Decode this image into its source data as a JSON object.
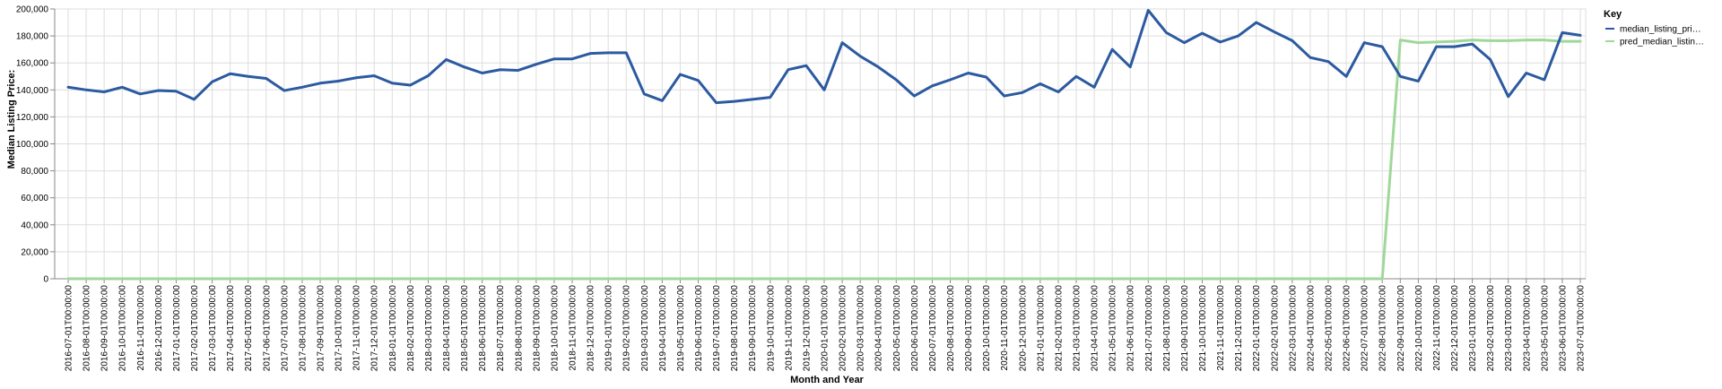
{
  "chart_data": {
    "type": "line",
    "xlabel": "Month and Year",
    "ylabel": "Median Listing Price:",
    "ylim": [
      0,
      200000
    ],
    "yticks": [
      "0",
      "20,000",
      "40,000",
      "60,000",
      "80,000",
      "100,000",
      "120,000",
      "140,000",
      "160,000",
      "180,000",
      "200,000"
    ],
    "grid": true,
    "legend": {
      "title": "Key",
      "placement": "top-right"
    },
    "x": [
      "2016-07-01T00:00:00",
      "2016-08-01T00:00:00",
      "2016-09-01T00:00:00",
      "2016-10-01T00:00:00",
      "2016-11-01T00:00:00",
      "2016-12-01T00:00:00",
      "2017-01-01T00:00:00",
      "2017-02-01T00:00:00",
      "2017-03-01T00:00:00",
      "2017-04-01T00:00:00",
      "2017-05-01T00:00:00",
      "2017-06-01T00:00:00",
      "2017-07-01T00:00:00",
      "2017-08-01T00:00:00",
      "2017-09-01T00:00:00",
      "2017-10-01T00:00:00",
      "2017-11-01T00:00:00",
      "2017-12-01T00:00:00",
      "2018-01-01T00:00:00",
      "2018-02-01T00:00:00",
      "2018-03-01T00:00:00",
      "2018-04-01T00:00:00",
      "2018-05-01T00:00:00",
      "2018-06-01T00:00:00",
      "2018-07-01T00:00:00",
      "2018-08-01T00:00:00",
      "2018-09-01T00:00:00",
      "2018-10-01T00:00:00",
      "2018-11-01T00:00:00",
      "2018-12-01T00:00:00",
      "2019-01-01T00:00:00",
      "2019-02-01T00:00:00",
      "2019-03-01T00:00:00",
      "2019-04-01T00:00:00",
      "2019-05-01T00:00:00",
      "2019-06-01T00:00:00",
      "2019-07-01T00:00:00",
      "2019-08-01T00:00:00",
      "2019-09-01T00:00:00",
      "2019-10-01T00:00:00",
      "2019-11-01T00:00:00",
      "2019-12-01T00:00:00",
      "2020-01-01T00:00:00",
      "2020-02-01T00:00:00",
      "2020-03-01T00:00:00",
      "2020-04-01T00:00:00",
      "2020-05-01T00:00:00",
      "2020-06-01T00:00:00",
      "2020-07-01T00:00:00",
      "2020-08-01T00:00:00",
      "2020-09-01T00:00:00",
      "2020-10-01T00:00:00",
      "2020-11-01T00:00:00",
      "2020-12-01T00:00:00",
      "2021-01-01T00:00:00",
      "2021-02-01T00:00:00",
      "2021-03-01T00:00:00",
      "2021-04-01T00:00:00",
      "2021-05-01T00:00:00",
      "2021-06-01T00:00:00",
      "2021-07-01T00:00:00",
      "2021-08-01T00:00:00",
      "2021-09-01T00:00:00",
      "2021-10-01T00:00:00",
      "2021-11-01T00:00:00",
      "2021-12-01T00:00:00",
      "2022-01-01T00:00:00",
      "2022-02-01T00:00:00",
      "2022-03-01T00:00:00",
      "2022-04-01T00:00:00",
      "2022-05-01T00:00:00",
      "2022-06-01T00:00:00",
      "2022-07-01T00:00:00",
      "2022-08-01T00:00:00",
      "2022-09-01T00:00:00",
      "2022-10-01T00:00:00",
      "2022-11-01T00:00:00",
      "2022-12-01T00:00:00",
      "2023-01-01T00:00:00",
      "2023-02-01T00:00:00",
      "2023-03-01T00:00:00",
      "2023-04-01T00:00:00",
      "2023-05-01T00:00:00",
      "2023-06-01T00:00:00",
      "2023-07-01T00:00:00"
    ],
    "series": [
      {
        "name": "median_listing_pri…",
        "color": "#2c5aa0",
        "values": [
          142000,
          140000,
          138500,
          142000,
          137000,
          139500,
          139000,
          133000,
          146000,
          152000,
          150000,
          148500,
          139500,
          142000,
          145000,
          146500,
          149000,
          150500,
          145000,
          143500,
          150500,
          162500,
          157000,
          152500,
          155000,
          154500,
          159000,
          163000,
          163000,
          167000,
          167500,
          167500,
          137000,
          132000,
          151500,
          147000,
          130500,
          131500,
          133000,
          134500,
          155000,
          158000,
          140000,
          175000,
          165000,
          157000,
          147500,
          135500,
          143000,
          147500,
          152500,
          149500,
          135500,
          138000,
          144500,
          138500,
          150000,
          142000,
          170000,
          157000,
          199000,
          182500,
          175000,
          182000,
          175500,
          180000,
          190000,
          183000,
          176500,
          164000,
          161000,
          150000,
          175000,
          172000,
          150000,
          146500,
          172000,
          172000,
          174000,
          162500,
          135000,
          152500,
          147500,
          182500,
          180500
        ]
      },
      {
        "name": "pred_median_listin…",
        "color": "#9fd89a",
        "values": [
          0,
          0,
          0,
          0,
          0,
          0,
          0,
          0,
          0,
          0,
          0,
          0,
          0,
          0,
          0,
          0,
          0,
          0,
          0,
          0,
          0,
          0,
          0,
          0,
          0,
          0,
          0,
          0,
          0,
          0,
          0,
          0,
          0,
          0,
          0,
          0,
          0,
          0,
          0,
          0,
          0,
          0,
          0,
          0,
          0,
          0,
          0,
          0,
          0,
          0,
          0,
          0,
          0,
          0,
          0,
          0,
          0,
          0,
          0,
          0,
          0,
          0,
          0,
          0,
          0,
          0,
          0,
          0,
          0,
          0,
          0,
          0,
          0,
          0,
          177000,
          175000,
          175500,
          176000,
          177000,
          176500,
          176500,
          177000,
          177000,
          176000,
          176000
        ]
      }
    ]
  }
}
